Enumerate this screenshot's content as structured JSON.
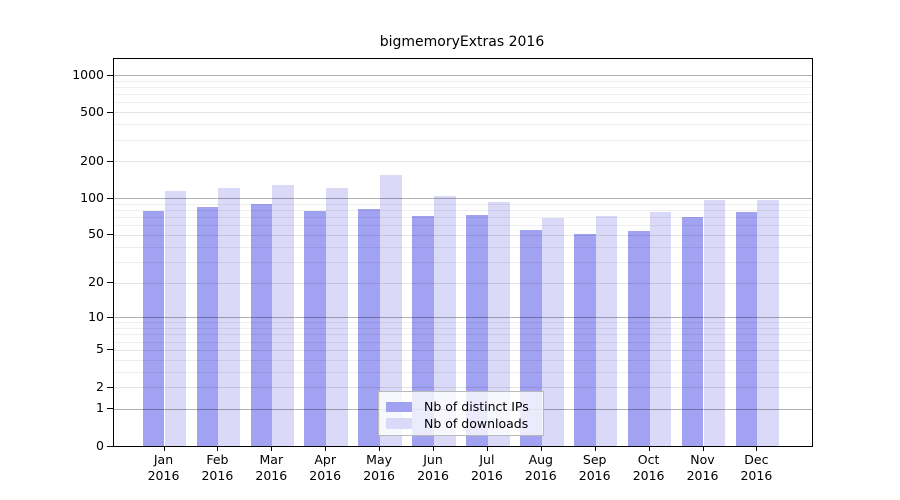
{
  "title": "bigmemoryExtras 2016",
  "x_axis": {
    "months": [
      "Jan",
      "Feb",
      "Mar",
      "Apr",
      "May",
      "Jun",
      "Jul",
      "Aug",
      "Sep",
      "Oct",
      "Nov",
      "Dec"
    ],
    "year": "2016"
  },
  "y_axis": {
    "tick_values": [
      0,
      1,
      2,
      5,
      10,
      20,
      50,
      100,
      200,
      500,
      1000
    ]
  },
  "legend": {
    "items": [
      {
        "label": "Nb of distinct IPs",
        "series_index": 0
      },
      {
        "label": "Nb of downloads",
        "series_index": 1
      }
    ]
  },
  "colors": {
    "ips_bar": "#a2a2f2",
    "downloads_bar": "#dadaf8",
    "axis": "#000000",
    "grid_major": "#b3b3b3",
    "grid_minor": "#e8e8e8",
    "legend_border": "#b9b9b9"
  },
  "chart_data": {
    "type": "bar",
    "title": "bigmemoryExtras 2016",
    "categories": [
      "Jan 2016",
      "Feb 2016",
      "Mar 2016",
      "Apr 2016",
      "May 2016",
      "Jun 2016",
      "Jul 2016",
      "Aug 2016",
      "Sep 2016",
      "Oct 2016",
      "Nov 2016",
      "Dec 2016"
    ],
    "series": [
      {
        "name": "Nb of distinct IPs",
        "color": "#a2a2f2",
        "values": [
          78,
          84,
          89,
          79,
          81,
          72,
          73,
          55,
          51,
          54,
          70,
          77
        ]
      },
      {
        "name": "Nb of downloads",
        "color": "#dadaf8",
        "values": [
          114,
          122,
          127,
          121,
          155,
          105,
          93,
          69,
          71,
          77,
          97,
          97
        ]
      }
    ],
    "xlabel": "",
    "ylabel": "",
    "y_scale": "log1p",
    "y_ticks": [
      0,
      1,
      2,
      5,
      10,
      20,
      50,
      100,
      200,
      500,
      1000
    ],
    "ylim": [
      0,
      1300
    ],
    "grid": true,
    "legend_position": "bottom-center"
  }
}
